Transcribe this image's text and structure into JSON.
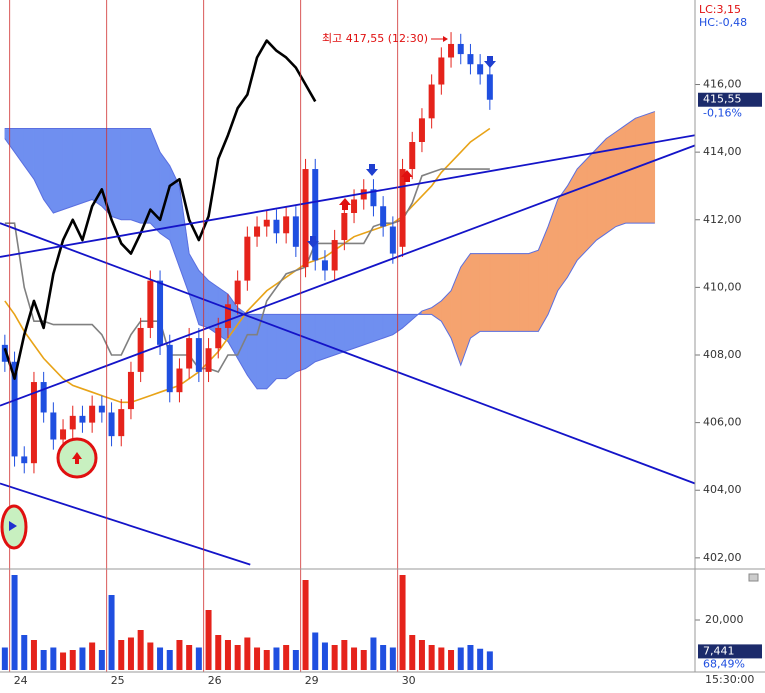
{
  "chart_data": {
    "type": "candlestick",
    "annotation": "최고 417,55 (12:30)",
    "lc": "LC:3,15",
    "hc": "HC:-0,48",
    "last_price": {
      "value": 415.55,
      "label": "415,55"
    },
    "change": "-0,16%",
    "time_label": "15:30:00",
    "up_color": "#e5231b",
    "down_color": "#1f4fe0",
    "xlim": [
      -0.5,
      71.15
    ],
    "ylim": [
      401.7,
      418.5
    ],
    "yticks": [
      {
        "value": 402,
        "label": "402,00"
      },
      {
        "value": 404,
        "label": "404,00"
      },
      {
        "value": 406,
        "label": "406,00"
      },
      {
        "value": 408,
        "label": "408,00"
      },
      {
        "value": 410,
        "label": "410,00"
      },
      {
        "value": 412,
        "label": "412,00"
      },
      {
        "value": 414,
        "label": "414,00"
      },
      {
        "value": 416,
        "label": "416,00"
      }
    ],
    "categories": [
      null,
      "24",
      null,
      null,
      null,
      null,
      null,
      null,
      null,
      null,
      null,
      "25",
      null,
      null,
      null,
      null,
      null,
      null,
      null,
      null,
      null,
      "26",
      null,
      null,
      null,
      null,
      null,
      null,
      null,
      null,
      null,
      "29",
      null,
      null,
      null,
      null,
      null,
      null,
      null,
      null,
      null,
      "30",
      null,
      null,
      null,
      null,
      null,
      null,
      null,
      null,
      null
    ],
    "open": [
      408.3,
      407.8,
      405.0,
      404.8,
      407.2,
      406.3,
      405.5,
      405.8,
      406.2,
      406.0,
      406.5,
      406.3,
      405.6,
      406.4,
      407.5,
      408.8,
      410.2,
      408.3,
      406.9,
      407.6,
      408.5,
      407.5,
      408.2,
      408.8,
      409.5,
      410.2,
      411.5,
      411.8,
      412.0,
      411.6,
      412.1,
      410.6,
      413.5,
      410.8,
      410.5,
      411.4,
      412.2,
      412.6,
      412.9,
      412.4,
      411.8,
      411.2,
      413.5,
      414.3,
      415.0,
      416.0,
      416.8,
      417.2,
      416.9,
      416.6,
      416.3
    ],
    "high": [
      408.6,
      408.1,
      405.3,
      407.5,
      407.5,
      406.6,
      406.1,
      406.5,
      406.5,
      406.8,
      406.8,
      406.6,
      406.7,
      407.8,
      409.1,
      410.5,
      410.5,
      408.6,
      407.9,
      408.8,
      408.8,
      408.5,
      409.1,
      409.8,
      410.5,
      411.8,
      412.1,
      412.3,
      412.3,
      412.4,
      412.4,
      413.8,
      413.8,
      411.1,
      411.7,
      412.5,
      412.9,
      413.2,
      413.2,
      412.7,
      412.1,
      413.8,
      414.6,
      415.3,
      416.3,
      417.1,
      417.55,
      417.5,
      417.2,
      416.9,
      416.6
    ],
    "low": [
      407.5,
      404.7,
      404.5,
      404.5,
      406.0,
      405.2,
      405.2,
      405.5,
      405.7,
      405.7,
      406.0,
      405.3,
      405.3,
      406.1,
      407.2,
      408.5,
      408.0,
      406.6,
      406.6,
      407.3,
      407.2,
      407.2,
      407.9,
      408.5,
      409.2,
      409.9,
      411.2,
      411.5,
      411.3,
      411.3,
      410.9,
      410.3,
      410.5,
      410.2,
      410.2,
      411.1,
      411.9,
      412.3,
      412.1,
      411.5,
      410.7,
      410.9,
      413.2,
      414.0,
      414.7,
      415.7,
      416.5,
      416.6,
      416.3,
      416.0,
      415.25
    ],
    "close": [
      407.8,
      405.0,
      404.8,
      407.2,
      406.3,
      405.5,
      405.8,
      406.2,
      406.0,
      406.5,
      406.3,
      405.6,
      406.4,
      407.5,
      408.8,
      410.2,
      408.3,
      406.9,
      407.6,
      408.5,
      407.5,
      408.2,
      408.8,
      409.5,
      410.2,
      411.5,
      411.8,
      412.0,
      411.6,
      412.1,
      411.2,
      413.5,
      410.8,
      410.5,
      411.4,
      412.2,
      412.6,
      412.9,
      412.4,
      411.8,
      411.0,
      413.5,
      414.3,
      415.0,
      416.0,
      416.8,
      417.2,
      416.9,
      416.6,
      416.3,
      415.55
    ],
    "lines": [
      {
        "color": "#000000",
        "width": 2.6,
        "values": [
          408.2,
          407.3,
          408.6,
          409.6,
          408.8,
          410.4,
          411.4,
          412.0,
          411.4,
          412.4,
          412.9,
          412.0,
          411.3,
          411.0,
          411.6,
          412.3,
          412.0,
          413.0,
          413.2,
          412.0,
          411.4,
          412.1,
          413.8,
          414.5,
          415.3,
          415.7,
          416.8,
          417.3,
          417.0,
          416.8,
          416.5,
          416.0,
          415.5,
          null,
          null,
          null,
          null,
          null,
          null,
          null,
          null,
          null,
          null,
          null,
          null,
          null,
          null,
          null,
          null,
          null,
          null
        ]
      },
      {
        "color": "#e8a317",
        "width": 1.6,
        "values": [
          409.6,
          409.2,
          408.7,
          408.3,
          407.9,
          407.6,
          407.3,
          407.1,
          407.0,
          406.9,
          406.8,
          406.7,
          406.6,
          406.6,
          406.7,
          406.8,
          406.9,
          407.0,
          407.1,
          407.3,
          407.5,
          407.8,
          408.1,
          408.5,
          408.9,
          409.3,
          409.6,
          409.9,
          410.1,
          410.3,
          410.5,
          410.7,
          410.8,
          410.9,
          411.1,
          411.3,
          411.5,
          411.6,
          411.7,
          411.8,
          411.9,
          412.1,
          412.4,
          412.7,
          413.0,
          413.4,
          413.7,
          414.0,
          414.3,
          414.5,
          414.7
        ]
      },
      {
        "color": "#808080",
        "width": 1.6,
        "values": [
          411.9,
          411.9,
          410.0,
          409.0,
          409.0,
          408.9,
          408.9,
          408.9,
          408.9,
          408.9,
          408.6,
          408.0,
          408.0,
          408.6,
          409.0,
          409.0,
          409.0,
          408.0,
          408.0,
          408.0,
          407.6,
          407.6,
          407.5,
          408.0,
          408.0,
          408.6,
          408.6,
          409.6,
          410.0,
          410.4,
          410.5,
          410.6,
          411.3,
          411.3,
          411.3,
          411.3,
          411.3,
          411.3,
          411.8,
          411.9,
          411.9,
          412.0,
          412.5,
          413.3,
          413.4,
          413.5,
          413.5,
          413.5,
          413.5,
          413.5,
          413.5
        ]
      }
    ],
    "cloud": {
      "bear_color": "#6f8ff0",
      "bull_color": "#f5a36f",
      "edge_color": "#5a6fe0",
      "span_a": [
        414.4,
        414.0,
        413.6,
        413.2,
        412.6,
        412.2,
        412.3,
        412.4,
        412.5,
        412.6,
        412.4,
        412.1,
        412.0,
        412.0,
        411.9,
        411.9,
        411.6,
        411.4,
        410.6,
        409.8,
        408.9,
        408.8,
        408.6,
        408.4,
        407.9,
        407.4,
        407.0,
        407.0,
        407.3,
        407.3,
        407.5,
        407.6,
        407.8,
        407.9,
        408.0,
        408.1,
        408.2,
        408.3,
        408.4,
        408.5,
        408.6,
        408.8,
        409.05,
        409.3,
        409.4,
        409.6,
        409.9,
        410.6,
        411.0,
        411.0,
        411.0,
        411.0,
        411.0,
        411.0,
        411.0,
        411.1,
        411.8,
        412.6,
        413.0,
        413.5,
        413.8,
        414.1,
        414.4,
        414.6,
        414.8,
        415.0,
        415.1,
        415.2
      ],
      "span_b": [
        414.7,
        414.7,
        414.7,
        414.7,
        414.7,
        414.7,
        414.7,
        414.7,
        414.7,
        414.7,
        414.7,
        414.7,
        414.7,
        414.7,
        414.7,
        414.7,
        414.0,
        413.6,
        413.0,
        411.0,
        410.5,
        410.2,
        410.0,
        409.8,
        409.4,
        409.2,
        409.2,
        409.2,
        409.2,
        409.2,
        409.2,
        409.2,
        409.2,
        409.2,
        409.2,
        409.2,
        409.2,
        409.2,
        409.2,
        409.2,
        409.2,
        409.2,
        409.2,
        409.2,
        409.2,
        409.0,
        408.5,
        407.7,
        408.5,
        408.7,
        408.7,
        408.7,
        408.7,
        408.7,
        408.7,
        408.7,
        409.2,
        409.9,
        410.3,
        410.8,
        411.1,
        411.4,
        411.6,
        411.8,
        411.9,
        411.9,
        411.9,
        411.9
      ]
    },
    "trend_color": "#1414c8",
    "trendlines": [
      {
        "x": [
          -0.5,
          71.15
        ],
        "y": [
          410.9,
          414.5
        ]
      },
      {
        "x": [
          -0.5,
          71.15
        ],
        "y": [
          406.5,
          414.2
        ]
      },
      {
        "x": [
          -0.5,
          71.15
        ],
        "y": [
          411.9,
          404.2
        ]
      },
      {
        "x": [
          -0.5,
          25.3
        ],
        "y": [
          404.2,
          401.8
        ]
      }
    ],
    "volume": [
      9000,
      38000,
      14000,
      12000,
      8000,
      9000,
      7000,
      8000,
      9000,
      11000,
      8000,
      30000,
      12000,
      13000,
      16000,
      11000,
      9000,
      8000,
      12000,
      10000,
      9000,
      24000,
      14000,
      12000,
      10000,
      13000,
      9000,
      8000,
      9000,
      10000,
      8000,
      36000,
      15000,
      11000,
      10000,
      12000,
      9000,
      8000,
      13000,
      10000,
      9000,
      38000,
      14000,
      12000,
      10000,
      9000,
      8000,
      9000,
      10000,
      8500,
      7441
    ],
    "volume_lim": [
      0,
      40000
    ],
    "volume_ticks": [
      {
        "value": 20000,
        "label": "20,000"
      }
    ],
    "volume_last": {
      "value": 7441,
      "label": "7,441"
    },
    "volume_ratio": "68,49%"
  }
}
